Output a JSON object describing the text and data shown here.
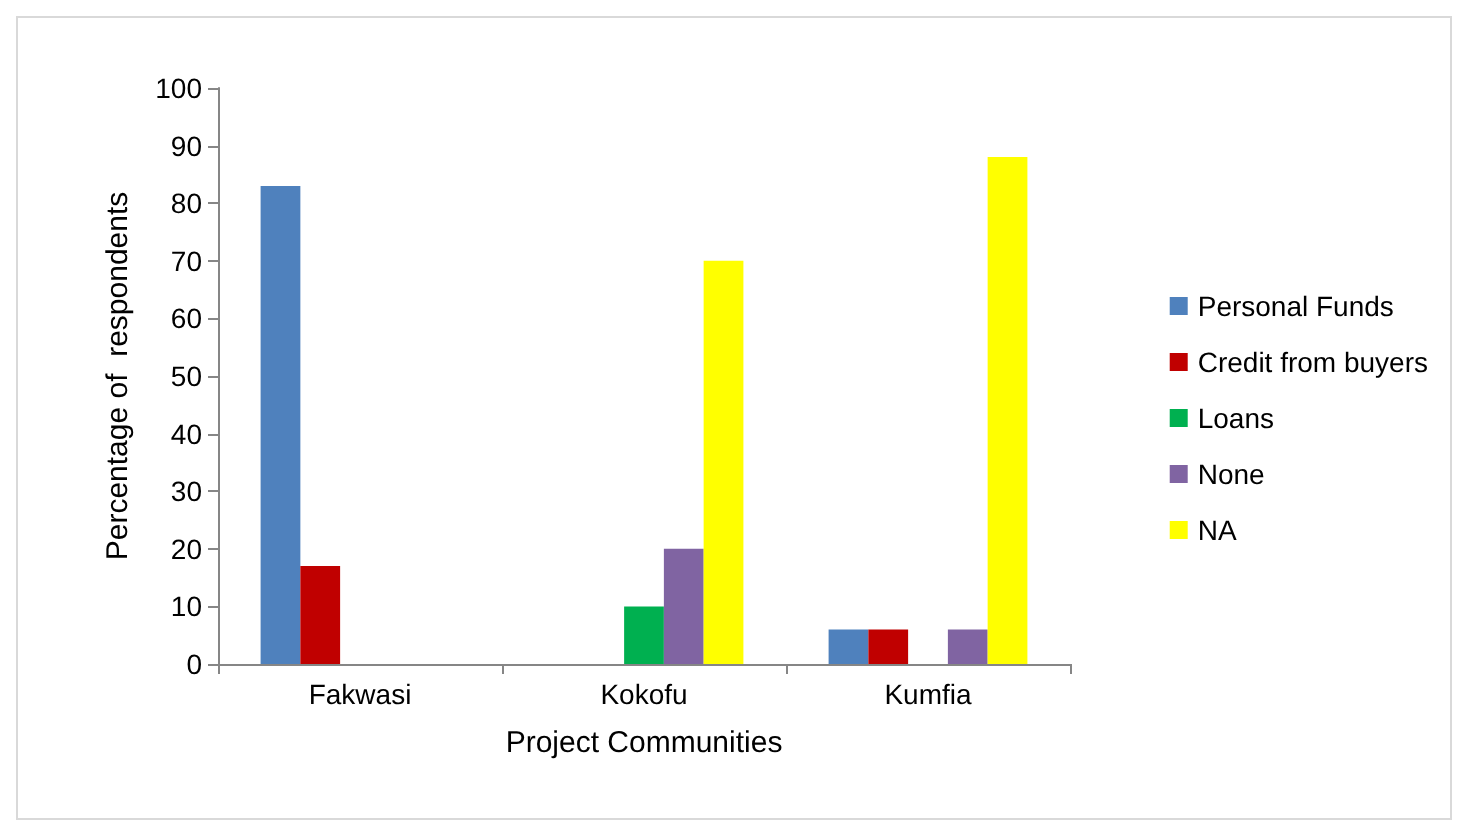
{
  "chart_data": {
    "type": "bar",
    "xlabel": "Project Communities",
    "ylabel": "Percentage of  respondents",
    "categories": [
      "Fakwasi",
      "Kokofu",
      "Kumfia"
    ],
    "series": [
      {
        "name": "Personal Funds",
        "color": "#4f81bd",
        "values": [
          83,
          0,
          6
        ]
      },
      {
        "name": "Credit from buyers",
        "color": "#c00000",
        "values": [
          17,
          0,
          6
        ]
      },
      {
        "name": "Loans",
        "color": "#00b050",
        "values": [
          0,
          10,
          0
        ]
      },
      {
        "name": "None",
        "color": "#8064a2",
        "values": [
          0,
          20,
          6
        ]
      },
      {
        "name": "NA",
        "color": "#ffff00",
        "values": [
          0,
          70,
          88
        ]
      }
    ],
    "ylim": [
      0,
      100
    ],
    "yticks": [
      0,
      10,
      20,
      30,
      40,
      50,
      60,
      70,
      80,
      90,
      100
    ],
    "grid": false,
    "legend": "right"
  }
}
